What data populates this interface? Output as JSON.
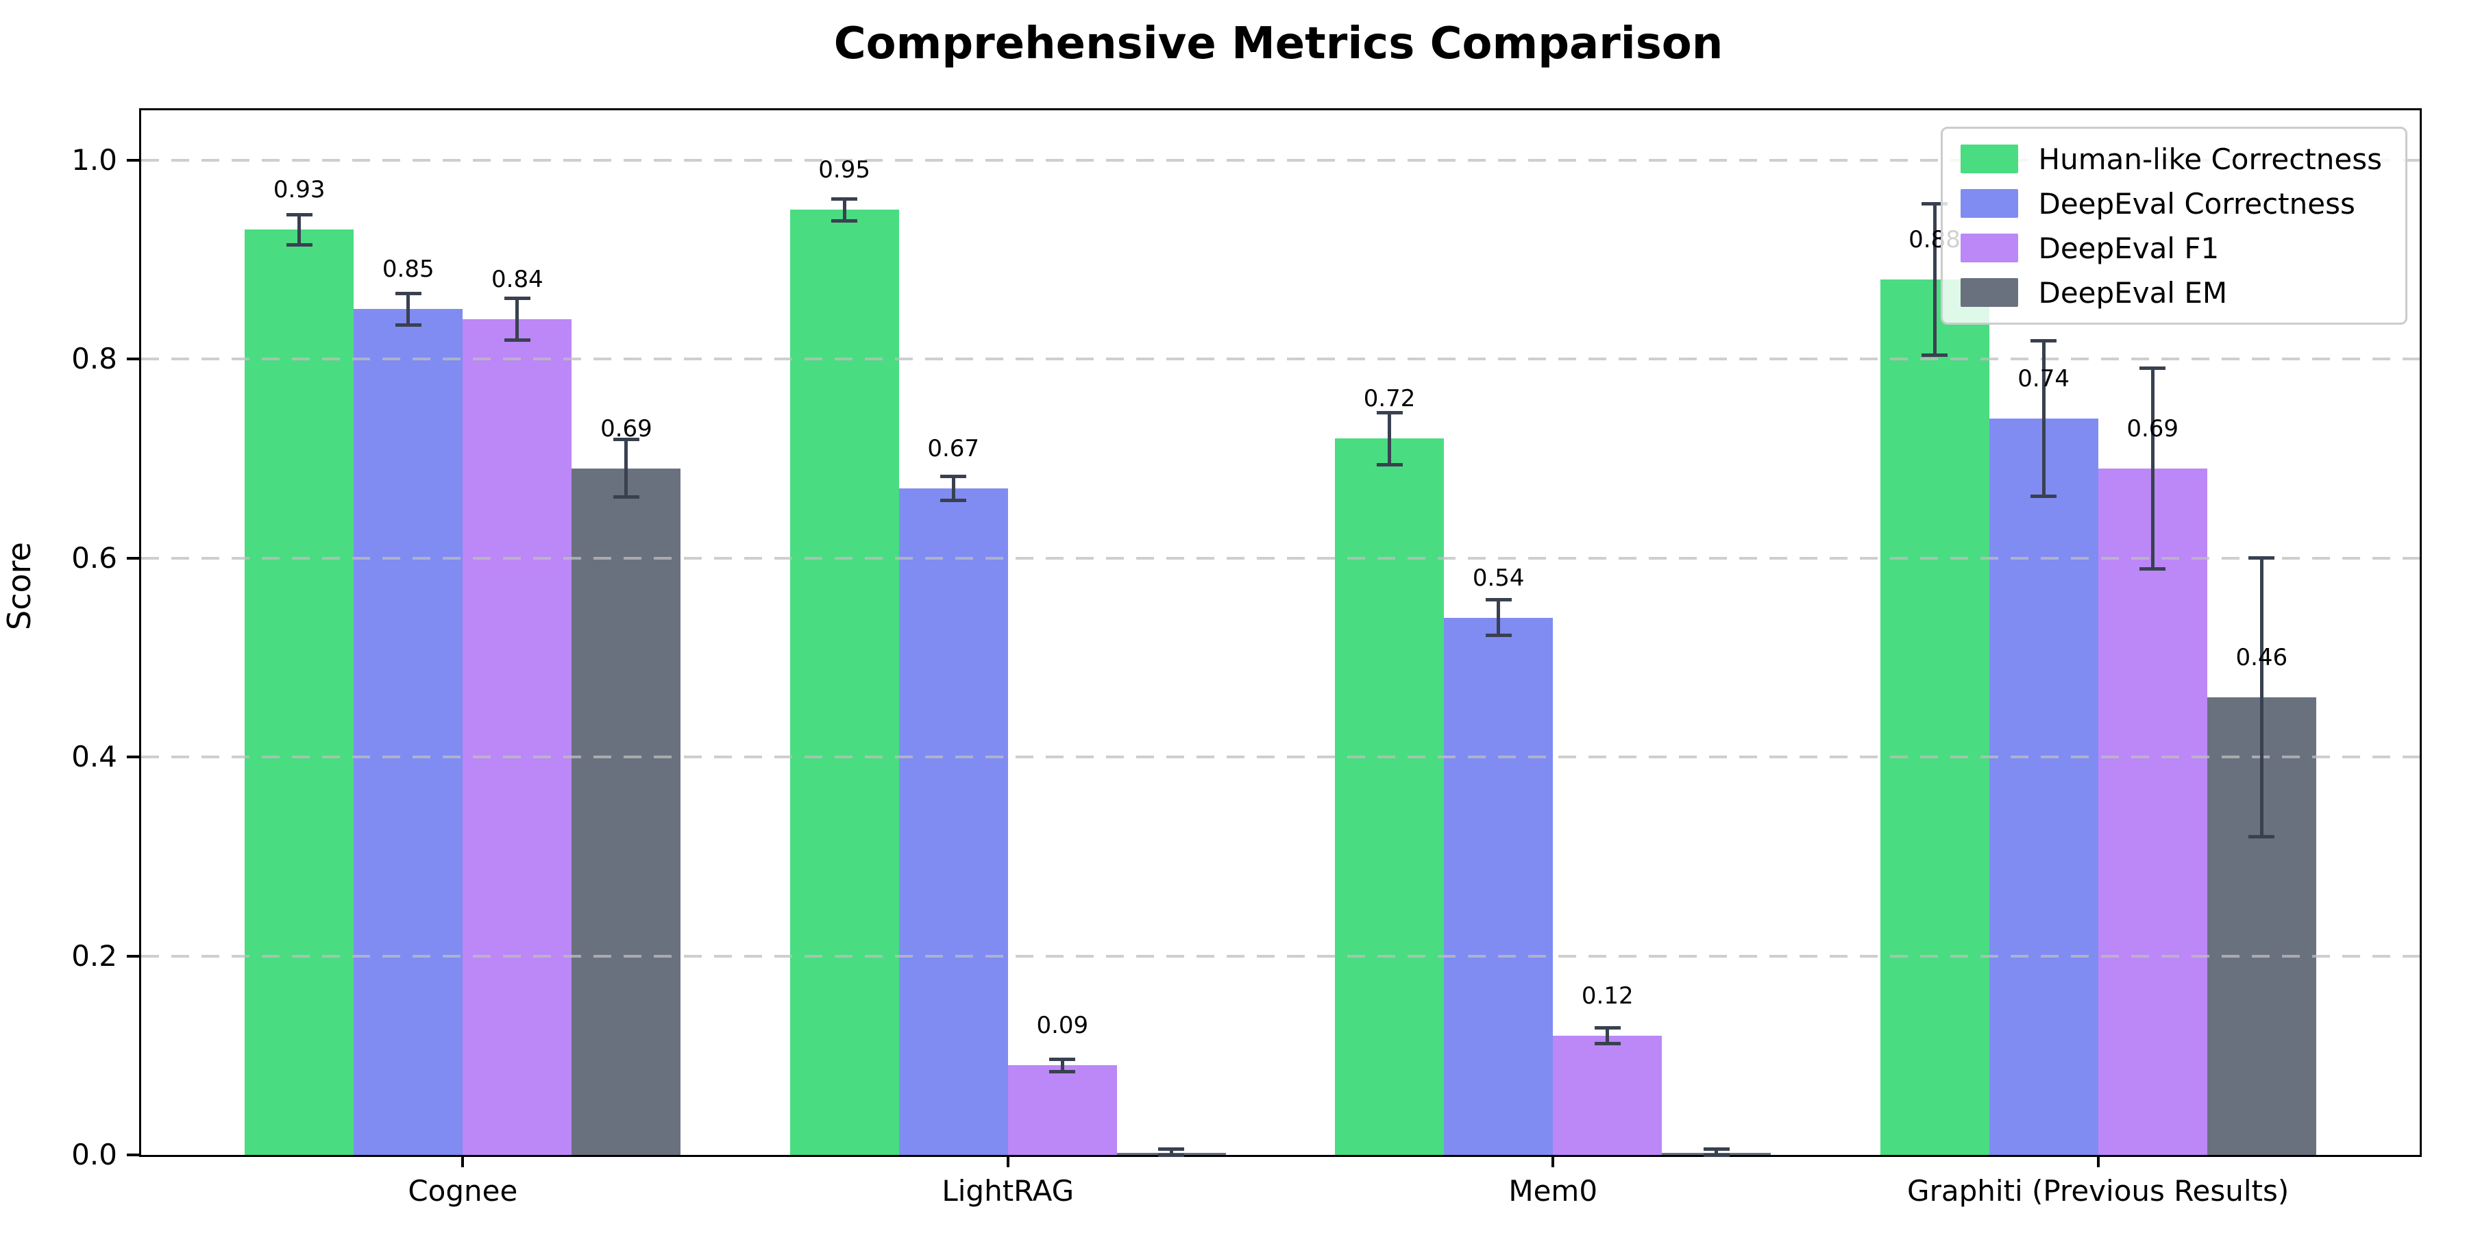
{
  "chart_data": {
    "type": "bar",
    "title": "Comprehensive Metrics Comparison",
    "ylabel": "Score",
    "xlabel": "",
    "categories": [
      "Cognee",
      "LightRAG",
      "Mem0",
      "Graphiti (Previous Results)"
    ],
    "series": [
      {
        "name": "Human-like Correctness",
        "color": "#4adc81",
        "values": [
          0.93,
          0.95,
          0.72,
          0.88
        ],
        "errors": [
          0.015,
          0.011,
          0.026,
          0.076
        ],
        "labels": [
          "0.93",
          "0.95",
          "0.72",
          "0.88"
        ]
      },
      {
        "name": "DeepEval Correctness",
        "color": "#808cf2",
        "values": [
          0.85,
          0.67,
          0.54,
          0.74
        ],
        "errors": [
          0.016,
          0.012,
          0.018,
          0.078
        ],
        "labels": [
          "0.85",
          "0.67",
          "0.54",
          "0.74"
        ]
      },
      {
        "name": "DeepEval F1",
        "color": "#bc87f6",
        "values": [
          0.84,
          0.09,
          0.12,
          0.69
        ],
        "errors": [
          0.021,
          0.006,
          0.008,
          0.101
        ],
        "labels": [
          "0.84",
          "0.09",
          "0.12",
          "0.69"
        ]
      },
      {
        "name": "DeepEval EM",
        "color": "#6a717e",
        "values": [
          0.69,
          0.002,
          0.002,
          0.46
        ],
        "errors": [
          0.029,
          0.004,
          0.004,
          0.14
        ],
        "labels": [
          "0.69",
          "",
          "",
          "0.46"
        ]
      }
    ],
    "yticks": {
      "values": [
        0.0,
        0.2,
        0.4,
        0.6,
        0.8,
        1.0
      ],
      "labels": [
        "0.0",
        "0.2",
        "0.4",
        "0.6",
        "0.8",
        "1.0"
      ]
    },
    "ylim": [
      0,
      1.05
    ],
    "grid": {
      "axis": "y",
      "style": "dashed",
      "color": "#c9c9c9",
      "alpha": 0.75
    },
    "legend_position": "upper right",
    "style": {
      "errorbar_color": "#394150",
      "axis_color": "#000000",
      "background": "#ffffff",
      "text_color": "#000000"
    }
  }
}
